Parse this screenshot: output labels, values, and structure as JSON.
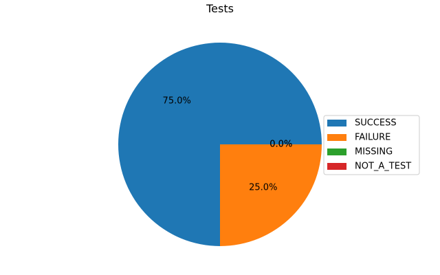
{
  "chart_data": {
    "type": "pie",
    "title": "Tests",
    "categories": [
      "SUCCESS",
      "FAILURE",
      "MISSING",
      "NOT_A_TEST"
    ],
    "values": [
      75.0,
      25.0,
      0.0,
      0.0
    ],
    "labels": [
      "75.0%",
      "25.0%",
      "0.0%",
      "0.0%"
    ],
    "colors": [
      "#1f77b4",
      "#ff7f0e",
      "#2ca02c",
      "#d62728"
    ],
    "legend_position": "right"
  }
}
